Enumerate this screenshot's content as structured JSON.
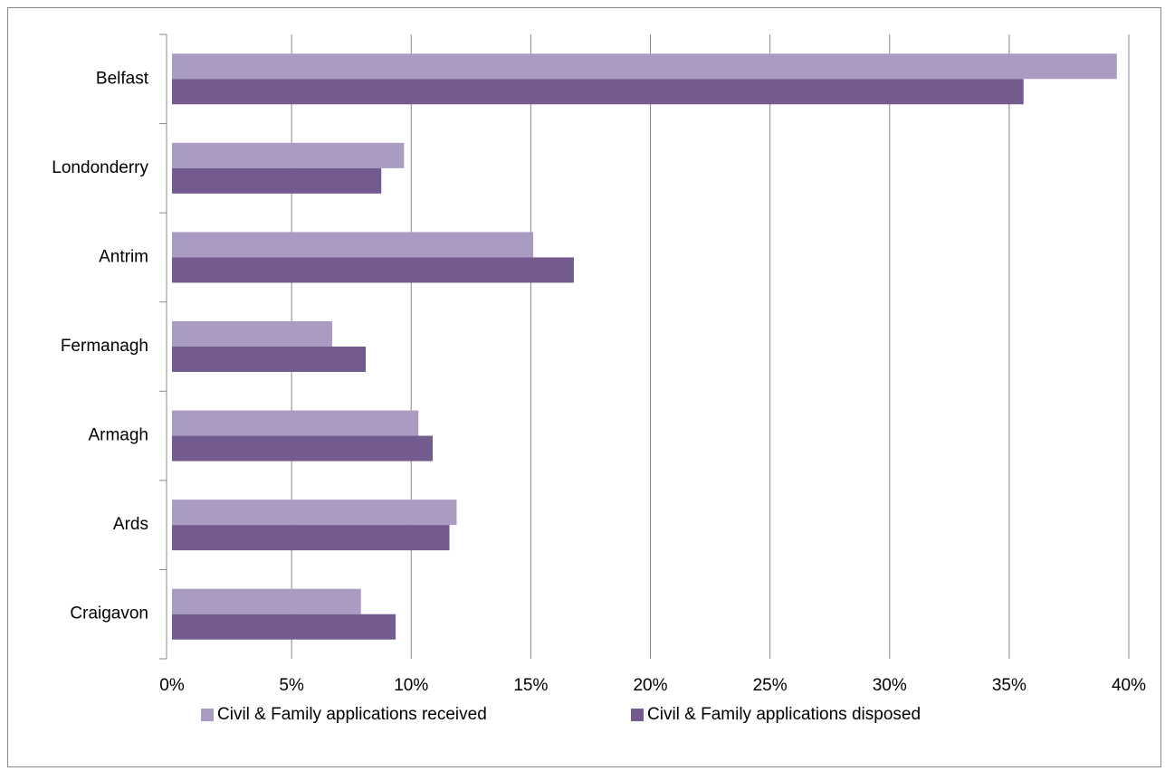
{
  "chart_data": {
    "type": "hbar",
    "categories": [
      "Belfast",
      "Londonderry",
      "Antrim",
      "Fermanagh",
      "Armagh",
      "Ards",
      "Craigavon"
    ],
    "series": [
      {
        "name": "Civil & Family applications received",
        "color": "#a99bc2",
        "values": [
          39.5,
          9.7,
          15.1,
          6.7,
          10.3,
          11.9,
          7.9
        ]
      },
      {
        "name": "Civil & Family applications disposed",
        "color": "#735a8f",
        "values": [
          35.6,
          8.75,
          16.8,
          8.1,
          10.9,
          11.6,
          9.35
        ]
      }
    ],
    "xlim": [
      0,
      40
    ],
    "xticks": [
      {
        "value": 0,
        "label": "0%"
      },
      {
        "value": 5,
        "label": "5%"
      },
      {
        "value": 10,
        "label": "10%"
      },
      {
        "value": 15,
        "label": "15%"
      },
      {
        "value": 20,
        "label": "20%"
      },
      {
        "value": 25,
        "label": "25%"
      },
      {
        "value": 30,
        "label": "30%"
      },
      {
        "value": 35,
        "label": "35%"
      },
      {
        "value": 40,
        "label": "40%"
      }
    ],
    "grid": true,
    "legend": "bottom"
  }
}
